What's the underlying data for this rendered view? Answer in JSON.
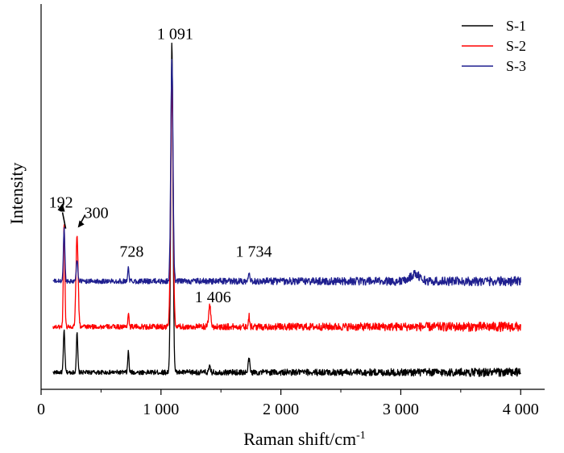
{
  "chart_data": {
    "type": "line",
    "xlabel": "Raman shift/cm",
    "xlabel_sup": "-1",
    "ylabel": "Intensity",
    "xlim": [
      0,
      4200
    ],
    "ylim": [
      0,
      100
    ],
    "x_ticks": [
      0,
      1000,
      2000,
      3000,
      4000
    ],
    "x_tick_labels": [
      "0",
      "1 000",
      "2 000",
      "3 000",
      "4 000"
    ],
    "y_ticks_shown": false,
    "grid": false,
    "legend_position": "top-right",
    "series": [
      {
        "name": "S-1",
        "color": "#000000",
        "baseline": 3,
        "noise": 0.9,
        "x_end": 4000,
        "peaks": [
          {
            "x": 192,
            "height": 12,
            "width": 6
          },
          {
            "x": 300,
            "height": 11,
            "width": 6
          },
          {
            "x": 728,
            "height": 6,
            "width": 5
          },
          {
            "x": 1091,
            "height": 94,
            "width": 9
          },
          {
            "x": 1406,
            "height": 1.5,
            "width": 6
          },
          {
            "x": 1734,
            "height": 4,
            "width": 6
          }
        ]
      },
      {
        "name": "S-2",
        "color": "#ff0000",
        "baseline": 16,
        "noise": 1.0,
        "x_end": 4000,
        "peaks": [
          {
            "x": 192,
            "height": 30,
            "width": 6
          },
          {
            "x": 300,
            "height": 26,
            "width": 9
          },
          {
            "x": 728,
            "height": 4,
            "width": 5
          },
          {
            "x": 1091,
            "height": 70,
            "width": 10
          },
          {
            "x": 1406,
            "height": 6.5,
            "width": 8
          },
          {
            "x": 1734,
            "height": 3,
            "width": 6
          }
        ]
      },
      {
        "name": "S-3",
        "color": "#1f1f8f",
        "baseline": 29,
        "noise": 1.0,
        "x_end": 4000,
        "peaks": [
          {
            "x": 192,
            "height": 15,
            "width": 6
          },
          {
            "x": 300,
            "height": 6,
            "width": 7
          },
          {
            "x": 728,
            "height": 4,
            "width": 5
          },
          {
            "x": 1091,
            "height": 64,
            "width": 9
          },
          {
            "x": 1734,
            "height": 3,
            "width": 7
          },
          {
            "x": 3120,
            "height": 2,
            "width": 40
          }
        ]
      }
    ],
    "annotations": [
      {
        "text": "192",
        "x": 192,
        "y": 50,
        "arrow_to": [
          192,
          44
        ]
      },
      {
        "text": "300",
        "x": 300,
        "y": 47,
        "arrow_to": [
          300,
          45
        ]
      },
      {
        "text": "728",
        "x": 728,
        "y": 36
      },
      {
        "text": "1 091",
        "x": 1091,
        "y": 98
      },
      {
        "text": "1 406",
        "x": 1406,
        "y": 23
      },
      {
        "text": "1 734",
        "x": 1734,
        "y": 36
      }
    ]
  }
}
